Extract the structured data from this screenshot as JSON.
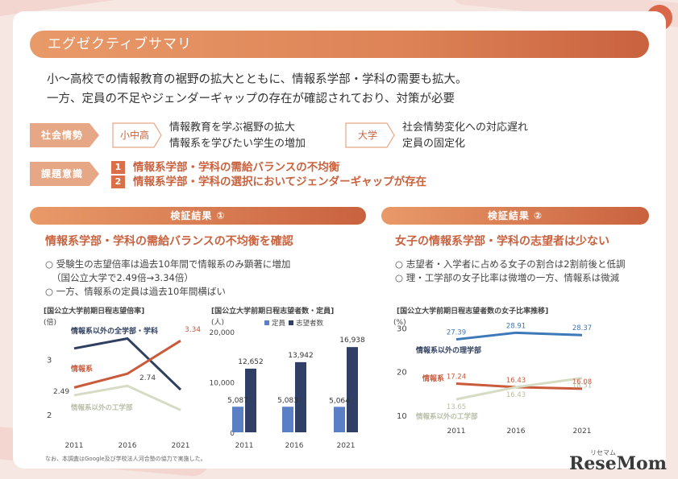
{
  "title": "エグゼクティブサマリ",
  "intro": {
    "line1": "小〜高校での情報教育の裾野の拡大とともに、情報系学部・学科の需要も拡大。",
    "line2": "一方、定員の不足やジェンダーギャップの存在が確認されており、対策が必要"
  },
  "social": {
    "tag": "社会情勢",
    "school_label": "小中高",
    "school_line1": "情報教育を学ぶ裾野の拡大",
    "school_line2": "情報系を学びたい学生の増加",
    "univ_label": "大学",
    "univ_line1": "社会情勢変化への対応遅れ",
    "univ_line2": "定員の固定化"
  },
  "issues": {
    "tag": "課題意識",
    "item1_num": "1",
    "item1": "情報系学部・学科の需給バランスの不均衡",
    "item2_num": "2",
    "item2": "情報系学部・学科の選択においてジェンダーギャップが存在"
  },
  "result1": {
    "bar": "検証結果 ①",
    "heading": "情報系学部・学科の需給バランスの不均衡を確認",
    "bullet1a": "○ 受験生の志望倍率は過去10年間で情報系のみ顕著に増加",
    "bullet1b": "（国公立大学で2.49倍→3.34倍）",
    "bullet2": "○ 一方、情報系の定員は過去10年間横ばい"
  },
  "result2": {
    "bar": "検証結果 ②",
    "heading": "女子の情報系学部・学科の志望者は少ない",
    "bullet1": "○ 志望者・入学者に占める女子の割合は2割前後と低調",
    "bullet2": "○ 理・工学部の女子比率は微増の一方、情報系は微減"
  },
  "chart_data": [
    {
      "type": "line",
      "title": "[国公立大学前期日程志望倍率]",
      "ylabel": "(倍)",
      "x": [
        "2011",
        "2016",
        "2021"
      ],
      "yticks": [
        "3",
        "2"
      ],
      "ylim": [
        1.75,
        3.65
      ],
      "series": [
        {
          "name": "情報系以外の全学部・学科",
          "values": [
            3.2,
            3.38,
            2.45
          ],
          "color": "#2f3f5f"
        },
        {
          "name": "情報系",
          "values": [
            2.49,
            2.74,
            3.34
          ],
          "color": "#c95a3c"
        },
        {
          "name": "情報系以外の工学部",
          "values": [
            2.35,
            2.52,
            2.08
          ],
          "color": "#d6dcc4"
        }
      ],
      "labels": {
        "a": "3.34",
        "b": "2.74",
        "c": "2.49"
      }
    },
    {
      "type": "bar",
      "title": "[国公立大学前期日程志望者数・定員]",
      "ylabel": "(人)",
      "yticks": [
        "20,000",
        "10,000",
        "0"
      ],
      "ylim": [
        0,
        20000
      ],
      "categories": [
        "2011",
        "2016",
        "2021"
      ],
      "series": [
        {
          "name": "定員",
          "values": [
            5087,
            5083,
            5064
          ],
          "color": "#5b7fc4"
        },
        {
          "name": "志望者数",
          "values": [
            12652,
            13942,
            16938
          ],
          "color": "#2f3f66"
        }
      ],
      "value_labels": {
        "cap": [
          "5,087",
          "5,083",
          "5,064"
        ],
        "app": [
          "12,652",
          "13,942",
          "16,938"
        ]
      }
    },
    {
      "type": "line",
      "title": "[国公立大学前期日程志望者数の女子比率推移]",
      "ylabel": "(%)",
      "x": [
        "2011",
        "2016",
        "2021"
      ],
      "yticks": [
        "30",
        "20",
        "10"
      ],
      "ylim": [
        7,
        31
      ],
      "series": [
        {
          "name": "情報系以外の理学部",
          "values": [
            27.39,
            28.91,
            28.37
          ],
          "color": "#3d78b8"
        },
        {
          "name": "情報系",
          "values": [
            17.24,
            16.43,
            16.08
          ],
          "color": "#c95a3c"
        },
        {
          "name": "情報系以外の工学部",
          "values": [
            13.65,
            16.43,
            18.51
          ],
          "color": "#d6dcc4"
        }
      ],
      "value_labels": {
        "science": [
          "27.39",
          "28.91",
          "28.37"
        ],
        "info": [
          "17.24",
          "16.43",
          "16.08"
        ],
        "eng": [
          "13.65",
          "16.43",
          "18.51"
        ]
      }
    }
  ],
  "footnote": "なお、本調査はGoogle及び学校法人河合塾の協力で実施した。",
  "mini_logo": "リセマム",
  "logo": "ReseMom"
}
